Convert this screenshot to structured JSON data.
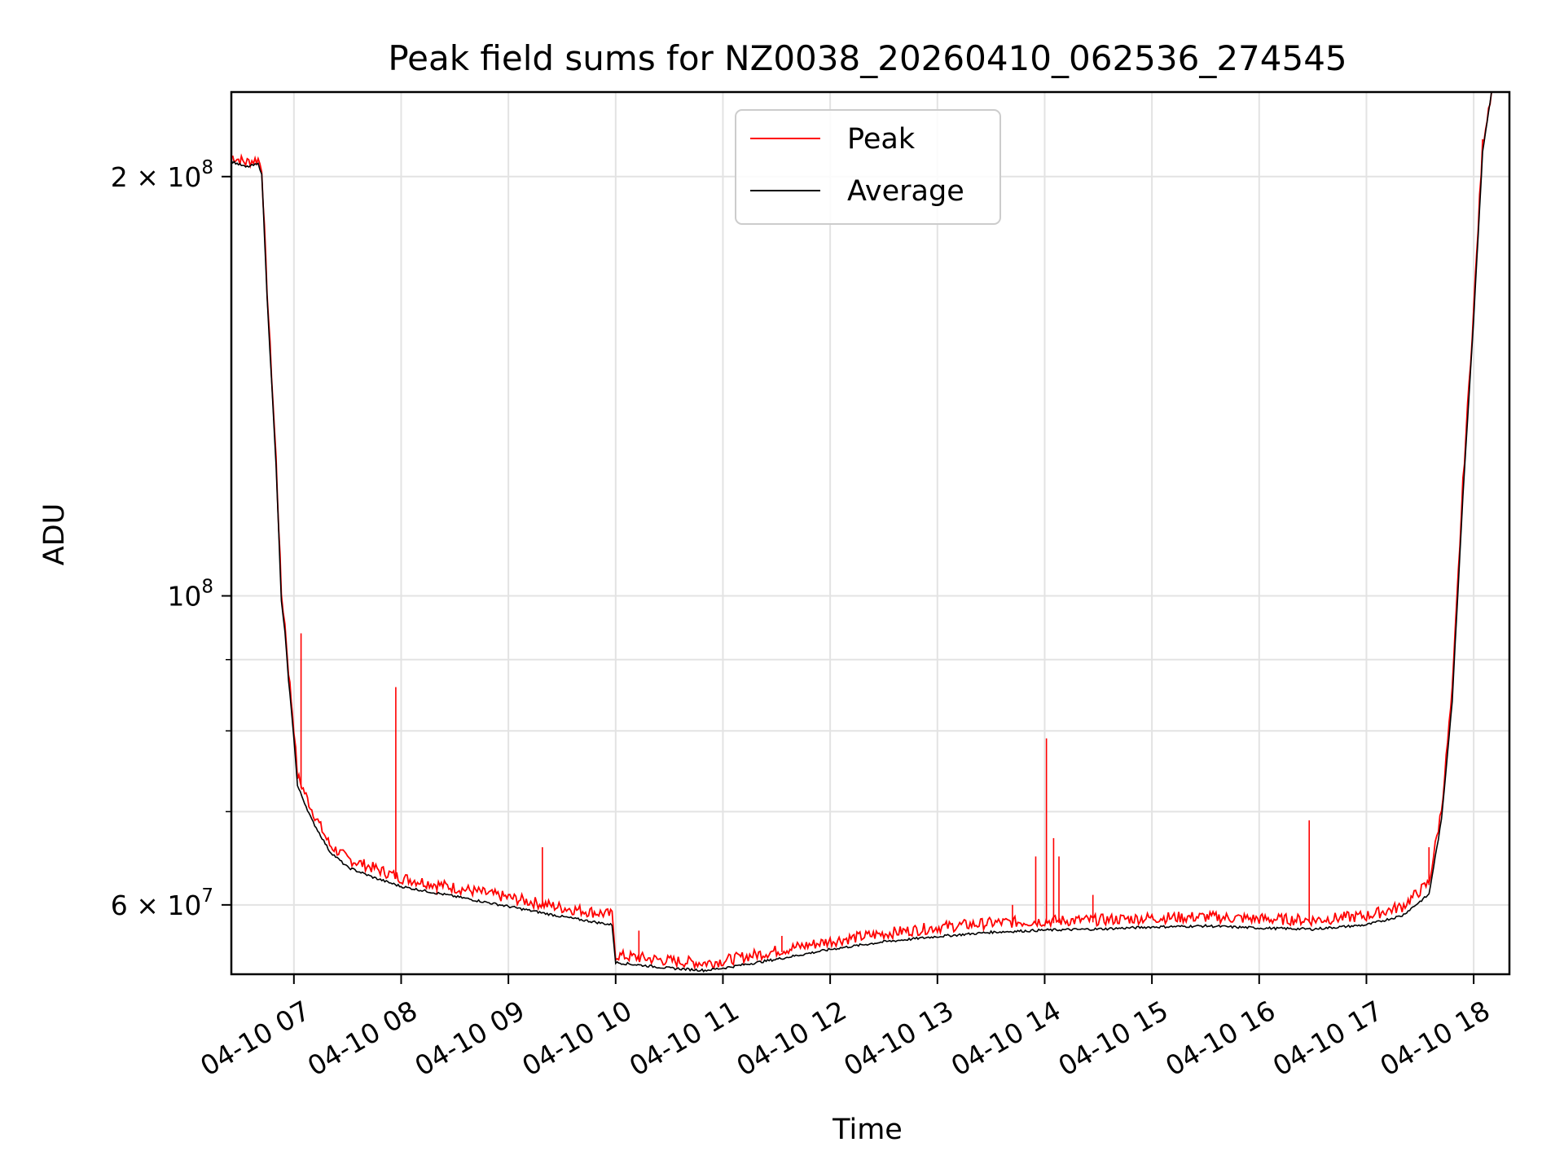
{
  "chart_data": {
    "type": "line",
    "title": "Peak field sums for NZ0038_20260410_062536_274545",
    "xlabel": "Time",
    "ylabel": "ADU",
    "yscale": "log",
    "xlim": [
      "2026-04-10T06:25",
      "2026-04-10T18:20"
    ],
    "ylim": [
      53500000,
      230000000
    ],
    "xticks": [
      {
        "t": "2026-04-10T07:00",
        "label": "04-10 07"
      },
      {
        "t": "2026-04-10T08:00",
        "label": "04-10 08"
      },
      {
        "t": "2026-04-10T09:00",
        "label": "04-10 09"
      },
      {
        "t": "2026-04-10T10:00",
        "label": "04-10 10"
      },
      {
        "t": "2026-04-10T11:00",
        "label": "04-10 11"
      },
      {
        "t": "2026-04-10T12:00",
        "label": "04-10 12"
      },
      {
        "t": "2026-04-10T13:00",
        "label": "04-10 13"
      },
      {
        "t": "2026-04-10T14:00",
        "label": "04-10 14"
      },
      {
        "t": "2026-04-10T15:00",
        "label": "04-10 15"
      },
      {
        "t": "2026-04-10T16:00",
        "label": "04-10 16"
      },
      {
        "t": "2026-04-10T17:00",
        "label": "04-10 17"
      },
      {
        "t": "2026-04-10T18:00",
        "label": "04-10 18"
      }
    ],
    "yticks_major": [
      {
        "value": 60000000,
        "base": "6",
        "exp": "7"
      },
      {
        "value": 100000000,
        "base": "",
        "exp": "8"
      },
      {
        "value": 200000000,
        "base": "2",
        "exp": "8"
      }
    ],
    "yticks_minor": [
      70000000,
      80000000,
      90000000
    ],
    "grid": true,
    "legend_position": "upper-center",
    "series": [
      {
        "name": "Peak",
        "color": "#ff0000",
        "points": [
          [
            "2026-04-10T06:25",
            206000000
          ],
          [
            "2026-04-10T06:33",
            204000000
          ],
          [
            "2026-04-10T06:40",
            205000000
          ],
          [
            "2026-04-10T06:42",
            202000000
          ],
          [
            "2026-04-10T06:45",
            165000000
          ],
          [
            "2026-04-10T06:50",
            125000000
          ],
          [
            "2026-04-10T06:53",
            100000000
          ],
          [
            "2026-04-10T06:55",
            95000000
          ],
          [
            "2026-04-10T06:57",
            88000000
          ],
          [
            "2026-04-10T07:00",
            80000000
          ],
          [
            "2026-04-10T07:02",
            74000000
          ],
          [
            "2026-04-10T07:10",
            70000000
          ],
          [
            "2026-04-10T07:20",
            66000000
          ],
          [
            "2026-04-10T07:30",
            64500000
          ],
          [
            "2026-04-10T07:45",
            63500000
          ],
          [
            "2026-04-10T08:00",
            62500000
          ],
          [
            "2026-04-10T08:30",
            61500000
          ],
          [
            "2026-04-10T09:00",
            60500000
          ],
          [
            "2026-04-10T09:30",
            59500000
          ],
          [
            "2026-04-10T09:58",
            58800000
          ],
          [
            "2026-04-10T10:00",
            55000000
          ],
          [
            "2026-04-10T10:30",
            54500000
          ],
          [
            "2026-04-10T10:50",
            54300000
          ],
          [
            "2026-04-10T11:00",
            54500000
          ],
          [
            "2026-04-10T11:30",
            55400000
          ],
          [
            "2026-04-10T12:00",
            56300000
          ],
          [
            "2026-04-10T12:30",
            57000000
          ],
          [
            "2026-04-10T13:00",
            57600000
          ],
          [
            "2026-04-10T13:30",
            58000000
          ],
          [
            "2026-04-10T14:00",
            58200000
          ],
          [
            "2026-04-10T14:30",
            58300000
          ],
          [
            "2026-04-10T15:00",
            58500000
          ],
          [
            "2026-04-10T15:30",
            58600000
          ],
          [
            "2026-04-10T16:00",
            58400000
          ],
          [
            "2026-04-10T16:30",
            58300000
          ],
          [
            "2026-04-10T17:00",
            58700000
          ],
          [
            "2026-04-10T17:20",
            59600000
          ],
          [
            "2026-04-10T17:35",
            62000000
          ],
          [
            "2026-04-10T17:42",
            70000000
          ],
          [
            "2026-04-10T17:48",
            85000000
          ],
          [
            "2026-04-10T17:54",
            120000000
          ],
          [
            "2026-04-10T18:00",
            160000000
          ],
          [
            "2026-04-10T18:05",
            210000000
          ],
          [
            "2026-04-10T18:10",
            230000000
          ]
        ],
        "spikes": [
          [
            "2026-04-10T07:04",
            94000000
          ],
          [
            "2026-04-10T07:57",
            86000000
          ],
          [
            "2026-04-10T08:20",
            61000000
          ],
          [
            "2026-04-10T09:19",
            66000000
          ],
          [
            "2026-04-10T10:13",
            57500000
          ],
          [
            "2026-04-10T11:33",
            57000000
          ],
          [
            "2026-04-10T13:42",
            60000000
          ],
          [
            "2026-04-10T13:55",
            65000000
          ],
          [
            "2026-04-10T14:01",
            79000000
          ],
          [
            "2026-04-10T14:05",
            67000000
          ],
          [
            "2026-04-10T14:08",
            65000000
          ],
          [
            "2026-04-10T14:27",
            61000000
          ],
          [
            "2026-04-10T16:28",
            69000000
          ],
          [
            "2026-04-10T17:35",
            66000000
          ]
        ]
      },
      {
        "name": "Average",
        "color": "#000000",
        "points": [
          [
            "2026-04-10T06:25",
            205000000
          ],
          [
            "2026-04-10T06:33",
            203000000
          ],
          [
            "2026-04-10T06:40",
            204000000
          ],
          [
            "2026-04-10T06:42",
            201000000
          ],
          [
            "2026-04-10T06:45",
            164000000
          ],
          [
            "2026-04-10T06:50",
            124000000
          ],
          [
            "2026-04-10T06:53",
            99000000
          ],
          [
            "2026-04-10T06:55",
            94000000
          ],
          [
            "2026-04-10T06:57",
            87000000
          ],
          [
            "2026-04-10T07:00",
            79000000
          ],
          [
            "2026-04-10T07:02",
            73000000
          ],
          [
            "2026-04-10T07:10",
            69000000
          ],
          [
            "2026-04-10T07:20",
            65500000
          ],
          [
            "2026-04-10T07:30",
            63800000
          ],
          [
            "2026-04-10T07:45",
            62700000
          ],
          [
            "2026-04-10T08:00",
            61800000
          ],
          [
            "2026-04-10T08:30",
            60800000
          ],
          [
            "2026-04-10T09:00",
            59800000
          ],
          [
            "2026-04-10T09:30",
            58800000
          ],
          [
            "2026-04-10T09:58",
            58000000
          ],
          [
            "2026-04-10T10:00",
            54500000
          ],
          [
            "2026-04-10T10:30",
            54000000
          ],
          [
            "2026-04-10T10:50",
            53800000
          ],
          [
            "2026-04-10T11:00",
            54000000
          ],
          [
            "2026-04-10T11:30",
            54800000
          ],
          [
            "2026-04-10T12:00",
            55700000
          ],
          [
            "2026-04-10T12:30",
            56400000
          ],
          [
            "2026-04-10T13:00",
            56900000
          ],
          [
            "2026-04-10T13:30",
            57300000
          ],
          [
            "2026-04-10T14:00",
            57500000
          ],
          [
            "2026-04-10T14:30",
            57600000
          ],
          [
            "2026-04-10T15:00",
            57800000
          ],
          [
            "2026-04-10T15:30",
            57900000
          ],
          [
            "2026-04-10T16:00",
            57700000
          ],
          [
            "2026-04-10T16:30",
            57600000
          ],
          [
            "2026-04-10T17:00",
            58000000
          ],
          [
            "2026-04-10T17:20",
            58900000
          ],
          [
            "2026-04-10T17:35",
            61000000
          ],
          [
            "2026-04-10T17:42",
            69000000
          ],
          [
            "2026-04-10T17:48",
            84000000
          ],
          [
            "2026-04-10T17:54",
            118000000
          ],
          [
            "2026-04-10T18:00",
            158000000
          ],
          [
            "2026-04-10T18:05",
            208000000
          ],
          [
            "2026-04-10T18:10",
            230000000
          ]
        ]
      }
    ]
  }
}
